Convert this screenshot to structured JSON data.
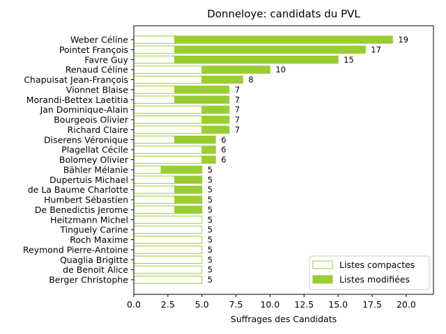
{
  "chart_data": {
    "type": "bar",
    "orientation": "horizontal",
    "stacked": true,
    "title": "Donneloye: candidats du PVL",
    "xlabel": "Suffrages des Candidats",
    "ylabel": "",
    "xlim": [
      0,
      22
    ],
    "xticks": [
      "0.0",
      "2.5",
      "5.0",
      "7.5",
      "10.0",
      "12.5",
      "15.0",
      "17.5",
      "20.0"
    ],
    "categories": [
      "Weber Céline",
      "Pointet François",
      "Favre Guy",
      "Renaud Céline",
      "Chapuisat Jean-François",
      "Vionnet Blaise",
      "Morandi-Bettex Laetitia",
      "Jan Dominique-Alain",
      "Bourgeois Olivier",
      "Richard Claire",
      "Diserens Véronique",
      "Plagellat Cécile",
      "Bolomey Olivier",
      "Bähler Mélanie",
      "Dupertuis Michael",
      "de La Baume Charlotte",
      "Humbert Sébastien",
      "De Benedictis Jerome",
      "Heitzmann Michel",
      "Tinguely Carine",
      "Roch Maxime",
      "Reymond Pierre-Antoine",
      "Quaglia Brigitte",
      "de Benoit Alice",
      "Berger Christophe"
    ],
    "series": [
      {
        "name": "Listes compactes",
        "values": [
          3,
          3,
          3,
          5,
          5,
          3,
          3,
          5,
          5,
          5,
          3,
          5,
          5,
          2,
          3,
          3,
          3,
          3,
          5,
          5,
          5,
          5,
          5,
          5,
          5
        ]
      },
      {
        "name": "Listes modifiées",
        "values": [
          16,
          14,
          12,
          5,
          3,
          4,
          4,
          2,
          2,
          2,
          3,
          1,
          1,
          3,
          2,
          2,
          2,
          2,
          0,
          0,
          0,
          0,
          0,
          0,
          0
        ]
      }
    ],
    "totals": [
      "19",
      "17",
      "15",
      "10",
      "8",
      "7",
      "7",
      "7",
      "7",
      "7",
      "6",
      "6",
      "6",
      "5",
      "5",
      "5",
      "5",
      "5",
      "5",
      "5",
      "5",
      "5",
      "5",
      "5",
      "5"
    ],
    "legend_position": "lower-right",
    "grid": false,
    "colors": {
      "bar": "#9acd32",
      "compact_fill": "#ffffff"
    }
  }
}
